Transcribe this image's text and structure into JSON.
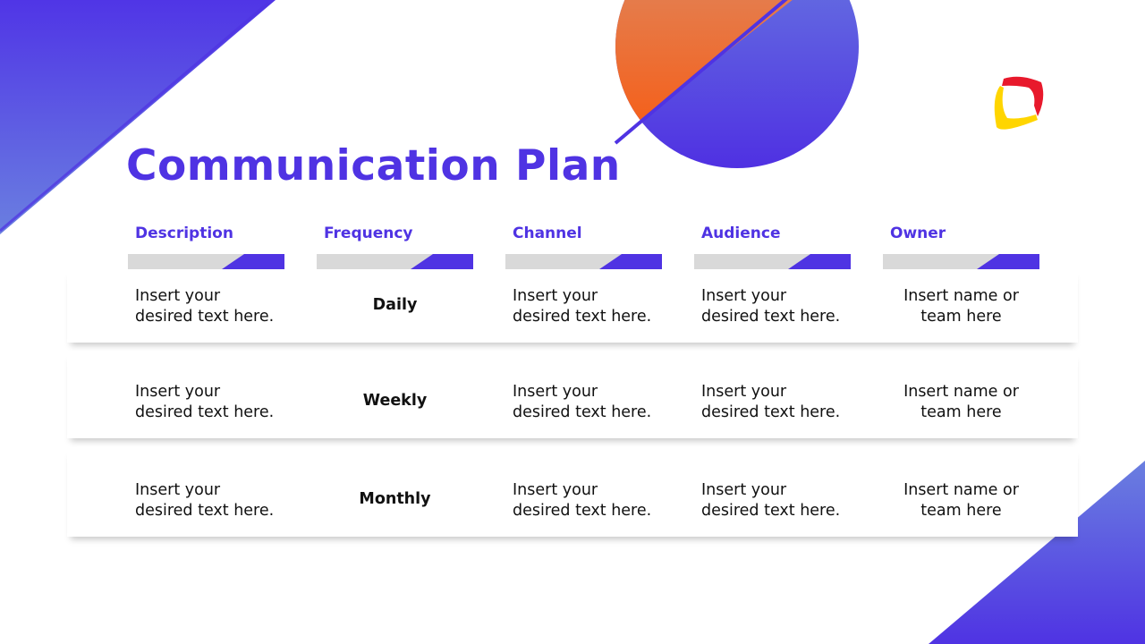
{
  "title": "Communication Plan",
  "colors": {
    "accent": "#4f33e3",
    "orange": "#f55e1a",
    "bar_gray": "#d9d9d9"
  },
  "logo": {
    "icon": "rounded-square-logo",
    "colors": [
      "#e8192c",
      "#ffd500"
    ]
  },
  "table": {
    "headers": [
      "Description",
      "Frequency",
      "Channel",
      "Audience",
      "Owner"
    ],
    "rows": [
      [
        "Insert your desired text here.",
        "Daily",
        "Insert your desired text here.",
        "Insert your desired text here.",
        "Insert name or team here"
      ],
      [
        "Insert your desired text here.",
        "Weekly",
        "Insert your desired text here.",
        "Insert your desired text here.",
        "Insert name or team here"
      ],
      [
        "Insert your desired text here.",
        "Monthly",
        "Insert your desired text here.",
        "Insert your desired text here.",
        "Insert name or team here"
      ]
    ]
  }
}
